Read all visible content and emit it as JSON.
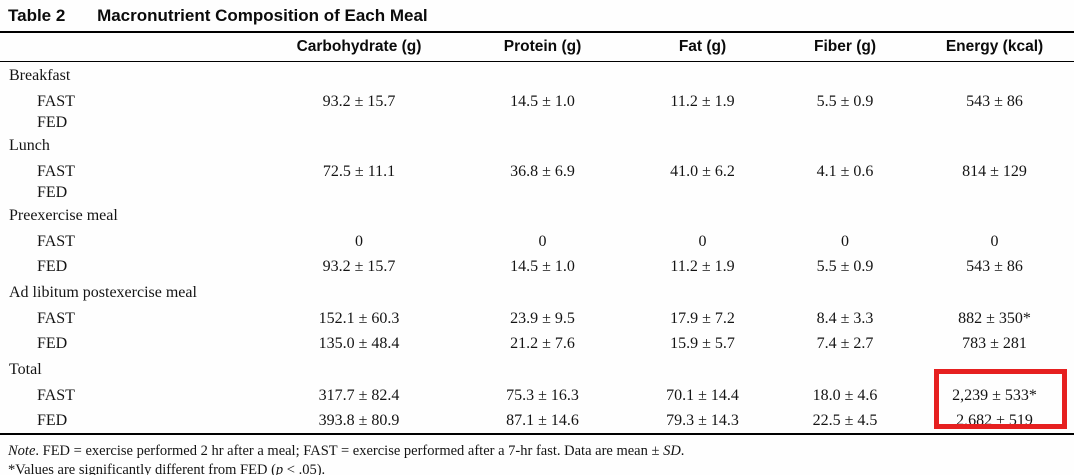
{
  "title": {
    "label": "Table 2",
    "text": "Macronutrient Composition of Each Meal"
  },
  "columns": [
    "Carbohydrate (g)",
    "Protein (g)",
    "Fat (g)",
    "Fiber (g)",
    "Energy (kcal)"
  ],
  "rows": [
    {
      "label": "Breakfast",
      "cells": [
        "",
        "",
        "",
        "",
        ""
      ]
    },
    {
      "label": "FAST",
      "cells": [
        "93.2 ± 15.7",
        "14.5 ± 1.0",
        "11.2 ± 1.9",
        "5.5 ± 0.9",
        "543 ± 86"
      ]
    },
    {
      "label": "FED",
      "cells": [
        "",
        "",
        "",
        "",
        ""
      ]
    },
    {
      "label": "Lunch",
      "cells": [
        "",
        "",
        "",
        "",
        ""
      ]
    },
    {
      "label": "FAST",
      "cells": [
        "72.5 ± 11.1",
        "36.8 ± 6.9",
        "41.0 ± 6.2",
        "4.1 ± 0.6",
        "814 ± 129"
      ]
    },
    {
      "label": "FED",
      "cells": [
        "",
        "",
        "",
        "",
        ""
      ]
    },
    {
      "label": "Preexercise meal",
      "cells": [
        "",
        "",
        "",
        "",
        ""
      ]
    },
    {
      "label": "FAST",
      "cells": [
        "0",
        "0",
        "0",
        "0",
        "0"
      ]
    },
    {
      "label": "FED",
      "cells": [
        "93.2 ± 15.7",
        "14.5 ± 1.0",
        "11.2 ± 1.9",
        "5.5 ± 0.9",
        "543 ± 86"
      ]
    },
    {
      "label": "Ad libitum postexercise meal",
      "cells": [
        "",
        "",
        "",
        "",
        ""
      ]
    },
    {
      "label": "FAST",
      "cells": [
        "152.1 ± 60.3",
        "23.9 ± 9.5",
        "17.9 ± 7.2",
        "8.4 ± 3.3",
        "882 ± 350*"
      ]
    },
    {
      "label": "FED",
      "cells": [
        "135.0 ± 48.4",
        "21.2 ± 7.6",
        "15.9 ± 5.7",
        "7.4 ± 2.7",
        "783 ± 281"
      ]
    },
    {
      "label": "Total",
      "cells": [
        "",
        "",
        "",
        "",
        ""
      ]
    },
    {
      "label": "FAST",
      "cells": [
        "317.7 ± 82.4",
        "75.3 ± 16.3",
        "70.1 ± 14.4",
        "18.0 ± 4.6",
        "2,239 ± 533*"
      ]
    },
    {
      "label": "FED",
      "cells": [
        "393.8 ± 80.9",
        "87.1 ± 14.6",
        "79.3 ± 14.3",
        "22.5 ± 4.5",
        "2,682 ± 519"
      ]
    }
  ],
  "footnotes": {
    "note_italic": "Note",
    "note_body": ". FED = exercise performed 2 hr after a meal; FAST = exercise performed after a 7-hr fast. Data are mean ± ",
    "note_sd": "SD",
    "note_period": ".",
    "sig_pre": "*Values are significantly different from FED (",
    "sig_p": "p",
    "sig_post": " < .05)."
  },
  "annotation": {
    "color": "#e62020"
  }
}
